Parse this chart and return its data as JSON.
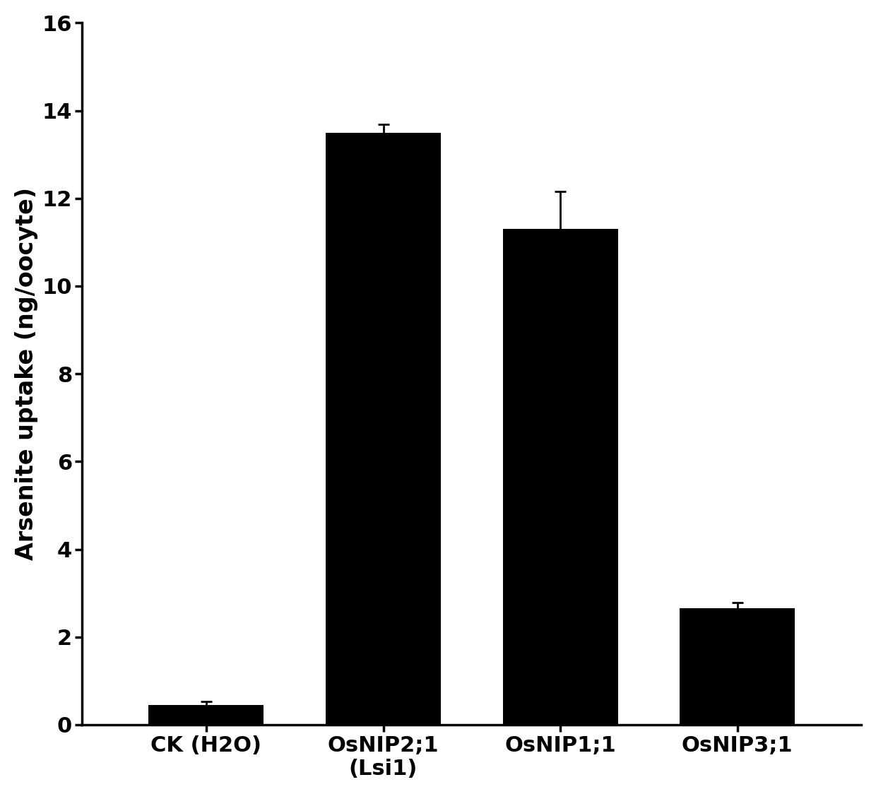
{
  "categories": [
    "CK (H2O)",
    "OsNIP2;1\n(Lsi1)",
    "OsNIP1;1",
    "OsNIP3;1"
  ],
  "values": [
    0.45,
    13.5,
    11.3,
    2.65
  ],
  "errors": [
    0.08,
    0.18,
    0.85,
    0.13
  ],
  "bar_color": "#000000",
  "ylabel": "Arsenite uptake (ng/oocyte)",
  "ylim": [
    0,
    16
  ],
  "yticks": [
    0,
    2,
    4,
    6,
    8,
    10,
    12,
    14,
    16
  ],
  "bar_width": 0.65,
  "background_color": "#ffffff",
  "ylabel_fontsize": 24,
  "tick_fontsize": 22,
  "xtick_fontsize": 22
}
